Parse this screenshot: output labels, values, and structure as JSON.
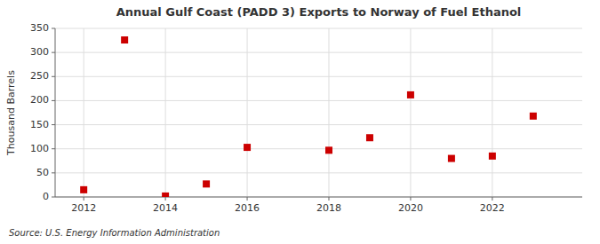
{
  "chart_data": {
    "type": "scatter",
    "title": "Annual Gulf Coast (PADD 3) Exports to Norway of Fuel Ethanol",
    "y_label": "Thousand Barrels",
    "annotations": [
      "Source: U.S. Energy Information Administration"
    ],
    "x": [
      2012,
      2013,
      2014,
      2015,
      2016,
      2018,
      2019,
      2020,
      2021,
      2022,
      2023
    ],
    "values": [
      15,
      326,
      2,
      27,
      103,
      97,
      123,
      212,
      80,
      85,
      168
    ],
    "color": "#cc0000",
    "marker": "square",
    "xlim": [
      2011.3,
      2024.2
    ],
    "xticks": [
      2012,
      2014,
      2016,
      2018,
      2020,
      2022
    ],
    "ylim": [
      0,
      350
    ],
    "yticks": [
      0,
      50,
      100,
      150,
      200,
      250,
      300,
      350
    ],
    "grid": true
  }
}
